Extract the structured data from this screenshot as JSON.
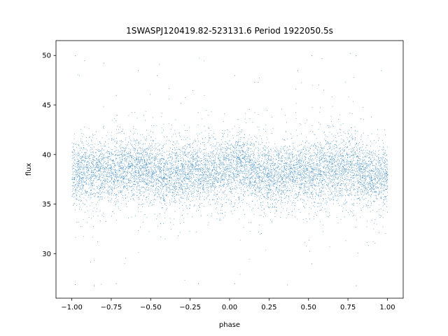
{
  "chart_data": {
    "type": "scatter",
    "title": "1SWASPJ120419.82-523131.6 Period 1922050.5s",
    "xlabel": "phase",
    "ylabel": "flux",
    "xlim": [
      -1.1,
      1.1
    ],
    "ylim": [
      25.5,
      51.5
    ],
    "xticks": [
      -1.0,
      -0.75,
      -0.5,
      -0.25,
      0.0,
      0.25,
      0.5,
      0.75,
      1.0
    ],
    "xtick_labels": [
      "−1.00",
      "−0.75",
      "−0.50",
      "−0.25",
      "0.00",
      "0.25",
      "0.50",
      "0.75",
      "1.00"
    ],
    "yticks": [
      30,
      35,
      40,
      45,
      50
    ],
    "ytick_labels": [
      "30",
      "35",
      "40",
      "45",
      "50"
    ],
    "grid": false,
    "marker_color": "#1f77b4",
    "series": [
      {
        "x_range": [
          -1.0,
          1.0
        ],
        "y_mean": 38.3,
        "y_spread": 1.6,
        "y_min": 26.7,
        "y_max": 50.3,
        "points": [
          [
            -1.0,
            37.5
          ],
          [
            -0.98,
            50.0
          ],
          [
            -0.98,
            26.9
          ],
          [
            -0.92,
            49.5
          ],
          [
            -0.86,
            26.8
          ],
          [
            -0.72,
            46.0
          ],
          [
            -0.72,
            27.0
          ],
          [
            -0.58,
            48.5
          ],
          [
            -0.46,
            48.0
          ],
          [
            -0.2,
            27.0
          ],
          [
            0.03,
            48.0
          ],
          [
            0.03,
            27.0
          ],
          [
            0.43,
            48.5
          ],
          [
            0.52,
            50.0
          ],
          [
            0.52,
            29.0
          ],
          [
            0.8,
            50.0
          ],
          [
            0.8,
            26.8
          ],
          [
            0.96,
            48.5
          ],
          [
            1.0,
            38.0
          ]
        ]
      }
    ]
  }
}
